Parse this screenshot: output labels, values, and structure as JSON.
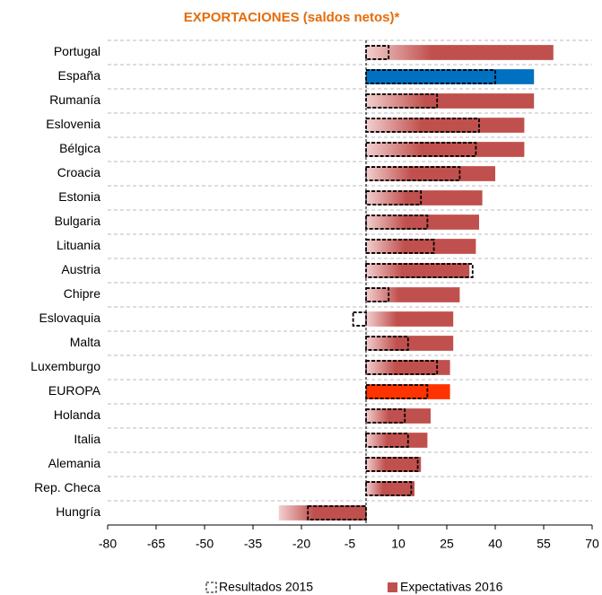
{
  "chart_data": {
    "type": "bar",
    "orientation": "horizontal",
    "title": "EXPORTACIONES (saldos netos)*",
    "categories": [
      "Portugal",
      "España",
      "Rumanía",
      "Eslovenia",
      "Bélgica",
      "Croacia",
      "Estonia",
      "Bulgaria",
      "Lituania",
      "Austria",
      "Chipre",
      "Eslovaquia",
      "Malta",
      "Luxemburgo",
      "EUROPA",
      "Holanda",
      "Italia",
      "Alemania",
      "Rep. Checa",
      "Hungría"
    ],
    "series": [
      {
        "name": "Expectativas 2016",
        "color": "#c0504d",
        "colors": [
          "#c0504d",
          "#0070c0",
          "#c0504d",
          "#c0504d",
          "#c0504d",
          "#c0504d",
          "#c0504d",
          "#c0504d",
          "#c0504d",
          "#c0504d",
          "#c0504d",
          "#c0504d",
          "#c0504d",
          "#c0504d",
          "#ff3300",
          "#c0504d",
          "#c0504d",
          "#c0504d",
          "#c0504d",
          "#c0504d"
        ],
        "values": [
          58,
          52,
          52,
          49,
          49,
          40,
          36,
          35,
          34,
          32,
          29,
          27,
          27,
          26,
          26,
          20,
          19,
          17,
          15,
          -27
        ]
      },
      {
        "name": "Resultados 2015",
        "color": "#000000",
        "values": [
          7,
          40,
          22,
          35,
          34,
          29,
          17,
          19,
          21,
          33,
          7,
          -4,
          13,
          22,
          19,
          12,
          13,
          16,
          14,
          -18
        ]
      }
    ],
    "xlim": [
      -80,
      70
    ],
    "xticks": [
      -80,
      -65,
      -50,
      -35,
      -20,
      -5,
      10,
      25,
      40,
      55,
      70
    ],
    "grid": true,
    "legend": "bottom"
  }
}
